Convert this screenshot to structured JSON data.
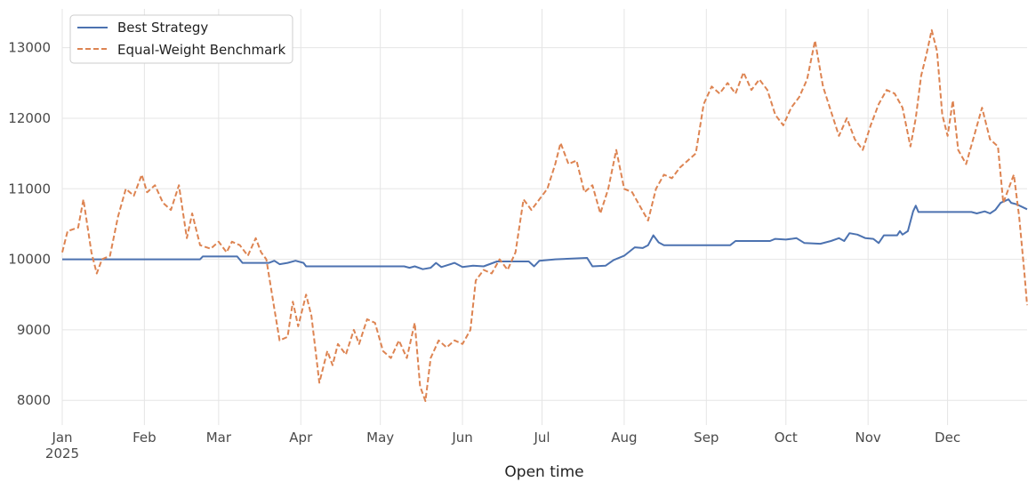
{
  "chart_data": {
    "type": "line",
    "title": "",
    "xlabel": "Open time",
    "ylabel": "",
    "xlim": [
      "2025-01-01",
      "2025-12-31"
    ],
    "ylim": [
      7650,
      13550
    ],
    "grid": true,
    "legend_position": "top-left",
    "x_ticks": [
      {
        "date": "2025-01-01",
        "label": "Jan",
        "sublabel": "2025"
      },
      {
        "date": "2025-02-01",
        "label": "Feb",
        "sublabel": ""
      },
      {
        "date": "2025-03-01",
        "label": "Mar",
        "sublabel": ""
      },
      {
        "date": "2025-04-01",
        "label": "Apr",
        "sublabel": ""
      },
      {
        "date": "2025-05-01",
        "label": "May",
        "sublabel": ""
      },
      {
        "date": "2025-06-01",
        "label": "Jun",
        "sublabel": ""
      },
      {
        "date": "2025-07-01",
        "label": "Jul",
        "sublabel": ""
      },
      {
        "date": "2025-08-01",
        "label": "Aug",
        "sublabel": ""
      },
      {
        "date": "2025-09-01",
        "label": "Sep",
        "sublabel": ""
      },
      {
        "date": "2025-10-01",
        "label": "Oct",
        "sublabel": ""
      },
      {
        "date": "2025-11-01",
        "label": "Nov",
        "sublabel": ""
      },
      {
        "date": "2025-12-01",
        "label": "Dec",
        "sublabel": ""
      }
    ],
    "y_ticks": [
      8000,
      9000,
      10000,
      11000,
      12000,
      13000
    ],
    "series": [
      {
        "name": "Best Strategy",
        "color": "#4c72b0",
        "dash": "solid",
        "points": [
          [
            "2025-01-01",
            10000
          ],
          [
            "2025-02-22",
            10000
          ],
          [
            "2025-02-23",
            10040
          ],
          [
            "2025-03-08",
            10040
          ],
          [
            "2025-03-10",
            9950
          ],
          [
            "2025-03-20",
            9950
          ],
          [
            "2025-03-22",
            9980
          ],
          [
            "2025-03-24",
            9930
          ],
          [
            "2025-03-27",
            9950
          ],
          [
            "2025-03-30",
            9980
          ],
          [
            "2025-04-02",
            9950
          ],
          [
            "2025-04-03",
            9900
          ],
          [
            "2025-05-10",
            9900
          ],
          [
            "2025-05-12",
            9880
          ],
          [
            "2025-05-14",
            9900
          ],
          [
            "2025-05-17",
            9860
          ],
          [
            "2025-05-20",
            9880
          ],
          [
            "2025-05-22",
            9950
          ],
          [
            "2025-05-24",
            9890
          ],
          [
            "2025-05-29",
            9950
          ],
          [
            "2025-06-01",
            9890
          ],
          [
            "2025-06-05",
            9910
          ],
          [
            "2025-06-09",
            9900
          ],
          [
            "2025-06-14",
            9970
          ],
          [
            "2025-06-26",
            9970
          ],
          [
            "2025-06-28",
            9900
          ],
          [
            "2025-06-30",
            9980
          ],
          [
            "2025-07-06",
            10000
          ],
          [
            "2025-07-18",
            10020
          ],
          [
            "2025-07-20",
            9900
          ],
          [
            "2025-07-25",
            9910
          ],
          [
            "2025-07-28",
            9990
          ],
          [
            "2025-08-01",
            10050
          ],
          [
            "2025-08-05",
            10170
          ],
          [
            "2025-08-08",
            10160
          ],
          [
            "2025-08-10",
            10200
          ],
          [
            "2025-08-12",
            10340
          ],
          [
            "2025-08-14",
            10240
          ],
          [
            "2025-08-16",
            10200
          ],
          [
            "2025-09-10",
            10200
          ],
          [
            "2025-09-12",
            10260
          ],
          [
            "2025-09-25",
            10260
          ],
          [
            "2025-09-27",
            10290
          ],
          [
            "2025-10-01",
            10280
          ],
          [
            "2025-10-05",
            10300
          ],
          [
            "2025-10-08",
            10230
          ],
          [
            "2025-10-14",
            10220
          ],
          [
            "2025-10-18",
            10260
          ],
          [
            "2025-10-21",
            10300
          ],
          [
            "2025-10-23",
            10260
          ],
          [
            "2025-10-25",
            10370
          ],
          [
            "2025-10-28",
            10350
          ],
          [
            "2025-10-31",
            10300
          ],
          [
            "2025-11-03",
            10290
          ],
          [
            "2025-11-05",
            10230
          ],
          [
            "2025-11-07",
            10340
          ],
          [
            "2025-11-12",
            10340
          ],
          [
            "2025-11-13",
            10400
          ],
          [
            "2025-11-14",
            10350
          ],
          [
            "2025-11-16",
            10400
          ],
          [
            "2025-11-18",
            10680
          ],
          [
            "2025-11-19",
            10760
          ],
          [
            "2025-11-20",
            10670
          ],
          [
            "2025-12-03",
            10670
          ],
          [
            "2025-12-10",
            10670
          ],
          [
            "2025-12-12",
            10650
          ],
          [
            "2025-12-15",
            10680
          ],
          [
            "2025-12-17",
            10650
          ],
          [
            "2025-12-19",
            10700
          ],
          [
            "2025-12-21",
            10800
          ],
          [
            "2025-12-24",
            10850
          ],
          [
            "2025-12-25",
            10800
          ],
          [
            "2025-12-27",
            10780
          ],
          [
            "2025-12-31",
            10710
          ]
        ]
      },
      {
        "name": "Equal-Weight Benchmark",
        "color": "#dd8452",
        "dash": "dashed",
        "points": [
          [
            "2025-01-01",
            10100
          ],
          [
            "2025-01-03",
            10400
          ],
          [
            "2025-01-07",
            10450
          ],
          [
            "2025-01-09",
            10850
          ],
          [
            "2025-01-12",
            10100
          ],
          [
            "2025-01-14",
            9800
          ],
          [
            "2025-01-16",
            10000
          ],
          [
            "2025-01-19",
            10050
          ],
          [
            "2025-01-22",
            10600
          ],
          [
            "2025-01-25",
            11000
          ],
          [
            "2025-01-28",
            10900
          ],
          [
            "2025-01-31",
            11200
          ],
          [
            "2025-02-02",
            10950
          ],
          [
            "2025-02-05",
            11050
          ],
          [
            "2025-02-08",
            10800
          ],
          [
            "2025-02-11",
            10700
          ],
          [
            "2025-02-14",
            11050
          ],
          [
            "2025-02-17",
            10300
          ],
          [
            "2025-02-19",
            10650
          ],
          [
            "2025-02-22",
            10200
          ],
          [
            "2025-02-26",
            10150
          ],
          [
            "2025-03-01",
            10250
          ],
          [
            "2025-03-04",
            10100
          ],
          [
            "2025-03-06",
            10250
          ],
          [
            "2025-03-09",
            10200
          ],
          [
            "2025-03-12",
            10050
          ],
          [
            "2025-03-15",
            10300
          ],
          [
            "2025-03-17",
            10100
          ],
          [
            "2025-03-19",
            10000
          ],
          [
            "2025-03-22",
            9300
          ],
          [
            "2025-03-24",
            8850
          ],
          [
            "2025-03-27",
            8900
          ],
          [
            "2025-03-29",
            9400
          ],
          [
            "2025-03-31",
            9050
          ],
          [
            "2025-04-03",
            9500
          ],
          [
            "2025-04-05",
            9200
          ],
          [
            "2025-04-08",
            8250
          ],
          [
            "2025-04-11",
            8700
          ],
          [
            "2025-04-13",
            8500
          ],
          [
            "2025-04-15",
            8800
          ],
          [
            "2025-04-18",
            8650
          ],
          [
            "2025-04-21",
            9000
          ],
          [
            "2025-04-23",
            8800
          ],
          [
            "2025-04-26",
            9150
          ],
          [
            "2025-04-29",
            9100
          ],
          [
            "2025-05-02",
            8700
          ],
          [
            "2025-05-05",
            8600
          ],
          [
            "2025-05-08",
            8850
          ],
          [
            "2025-05-11",
            8600
          ],
          [
            "2025-05-14",
            9100
          ],
          [
            "2025-05-16",
            8200
          ],
          [
            "2025-05-18",
            7990
          ],
          [
            "2025-05-20",
            8600
          ],
          [
            "2025-05-23",
            8850
          ],
          [
            "2025-05-26",
            8750
          ],
          [
            "2025-05-29",
            8850
          ],
          [
            "2025-06-01",
            8800
          ],
          [
            "2025-06-04",
            9000
          ],
          [
            "2025-06-06",
            9700
          ],
          [
            "2025-06-09",
            9850
          ],
          [
            "2025-06-12",
            9800
          ],
          [
            "2025-06-15",
            10000
          ],
          [
            "2025-06-18",
            9850
          ],
          [
            "2025-06-21",
            10100
          ],
          [
            "2025-06-24",
            10850
          ],
          [
            "2025-06-27",
            10700
          ],
          [
            "2025-06-30",
            10850
          ],
          [
            "2025-07-03",
            11000
          ],
          [
            "2025-07-06",
            11350
          ],
          [
            "2025-07-08",
            11650
          ],
          [
            "2025-07-11",
            11350
          ],
          [
            "2025-07-14",
            11400
          ],
          [
            "2025-07-17",
            10950
          ],
          [
            "2025-07-20",
            11050
          ],
          [
            "2025-07-23",
            10650
          ],
          [
            "2025-07-26",
            11000
          ],
          [
            "2025-07-29",
            11550
          ],
          [
            "2025-08-01",
            11000
          ],
          [
            "2025-08-04",
            10950
          ],
          [
            "2025-08-07",
            10750
          ],
          [
            "2025-08-10",
            10550
          ],
          [
            "2025-08-13",
            11000
          ],
          [
            "2025-08-16",
            11200
          ],
          [
            "2025-08-19",
            11150
          ],
          [
            "2025-08-22",
            11300
          ],
          [
            "2025-08-25",
            11400
          ],
          [
            "2025-08-28",
            11500
          ],
          [
            "2025-08-31",
            12200
          ],
          [
            "2025-09-03",
            12450
          ],
          [
            "2025-09-06",
            12350
          ],
          [
            "2025-09-09",
            12500
          ],
          [
            "2025-09-12",
            12350
          ],
          [
            "2025-09-15",
            12650
          ],
          [
            "2025-09-18",
            12400
          ],
          [
            "2025-09-21",
            12550
          ],
          [
            "2025-09-24",
            12400
          ],
          [
            "2025-09-27",
            12050
          ],
          [
            "2025-09-30",
            11900
          ],
          [
            "2025-10-03",
            12150
          ],
          [
            "2025-10-06",
            12300
          ],
          [
            "2025-10-09",
            12550
          ],
          [
            "2025-10-12",
            13100
          ],
          [
            "2025-10-15",
            12450
          ],
          [
            "2025-10-18",
            12100
          ],
          [
            "2025-10-21",
            11750
          ],
          [
            "2025-10-24",
            12000
          ],
          [
            "2025-10-27",
            11700
          ],
          [
            "2025-10-30",
            11550
          ],
          [
            "2025-11-02",
            11900
          ],
          [
            "2025-11-05",
            12200
          ],
          [
            "2025-11-08",
            12400
          ],
          [
            "2025-11-11",
            12350
          ],
          [
            "2025-11-14",
            12150
          ],
          [
            "2025-11-17",
            11600
          ],
          [
            "2025-11-19",
            12000
          ],
          [
            "2025-11-21",
            12600
          ],
          [
            "2025-11-23",
            12900
          ],
          [
            "2025-11-25",
            13250
          ],
          [
            "2025-11-27",
            12950
          ],
          [
            "2025-11-29",
            12050
          ],
          [
            "2025-12-01",
            11750
          ],
          [
            "2025-12-03",
            12250
          ],
          [
            "2025-12-05",
            11550
          ],
          [
            "2025-12-08",
            11350
          ],
          [
            "2025-12-11",
            11750
          ],
          [
            "2025-12-14",
            12150
          ],
          [
            "2025-12-17",
            11700
          ],
          [
            "2025-12-20",
            11600
          ],
          [
            "2025-12-22",
            10800
          ],
          [
            "2025-12-24",
            11000
          ],
          [
            "2025-12-26",
            11200
          ],
          [
            "2025-12-28",
            10600
          ],
          [
            "2025-12-30",
            9800
          ],
          [
            "2025-12-31",
            9350
          ]
        ]
      }
    ]
  }
}
